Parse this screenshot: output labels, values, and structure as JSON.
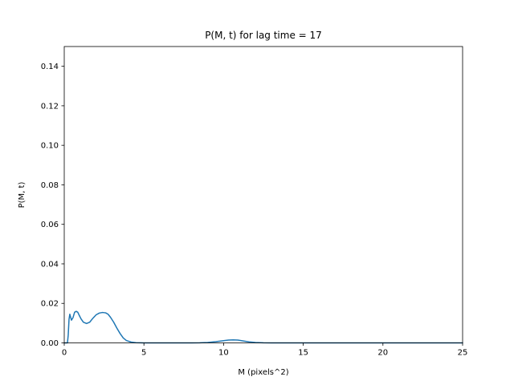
{
  "chart_data": {
    "type": "line",
    "title": "P(M, t) for lag time = 17",
    "xlabel": "M (pixels^2)",
    "ylabel": "P(M, t)",
    "xlim": [
      0,
      25
    ],
    "ylim": [
      0,
      0.15
    ],
    "xticks": [
      0,
      5,
      10,
      15,
      20,
      25
    ],
    "xtick_labels": [
      "0",
      "5",
      "10",
      "15",
      "20",
      "25"
    ],
    "yticks": [
      0,
      0.02,
      0.04,
      0.06,
      0.08,
      0.1,
      0.12,
      0.14
    ],
    "ytick_labels": [
      "0.00",
      "0.02",
      "0.04",
      "0.06",
      "0.08",
      "0.10",
      "0.12",
      "0.14"
    ],
    "grid": false,
    "line_color": "#1f77b4",
    "series": [
      {
        "x": [
          0.0,
          0.1,
          0.15,
          0.2,
          0.25,
          0.3,
          0.35,
          0.45,
          0.55,
          0.65,
          0.75,
          0.85,
          0.95,
          1.05,
          1.2,
          1.4,
          1.6,
          1.8,
          2.0,
          2.2,
          2.4,
          2.6,
          2.75,
          2.9,
          3.1,
          3.3,
          3.5,
          3.7,
          3.9,
          4.2,
          4.5,
          4.8,
          5.0,
          5.5,
          6.0,
          7.0,
          8.0,
          8.5,
          9.0,
          9.5,
          10.0,
          10.3,
          10.6,
          10.9,
          11.2,
          11.6,
          12.0,
          12.5,
          13.0,
          14.0,
          16.0,
          18.0,
          20.0,
          22.0,
          25.0
        ],
        "y": [
          0.0,
          0.0,
          0.0,
          0.0,
          0.004,
          0.012,
          0.0145,
          0.0115,
          0.0128,
          0.0155,
          0.016,
          0.0155,
          0.0138,
          0.0122,
          0.0105,
          0.0098,
          0.0105,
          0.0125,
          0.0142,
          0.0151,
          0.0154,
          0.0152,
          0.0145,
          0.013,
          0.0105,
          0.0075,
          0.0048,
          0.0025,
          0.0012,
          0.0004,
          0.0001,
          3e-05,
          0.0,
          0.0,
          0.0,
          0.0,
          0.0,
          5e-05,
          0.0002,
          0.0006,
          0.0011,
          0.0014,
          0.0015,
          0.0014,
          0.001,
          0.0005,
          0.0002,
          5e-05,
          0.0,
          0.0,
          0.0,
          0.0,
          0.0,
          0.0,
          0.0
        ]
      }
    ]
  }
}
